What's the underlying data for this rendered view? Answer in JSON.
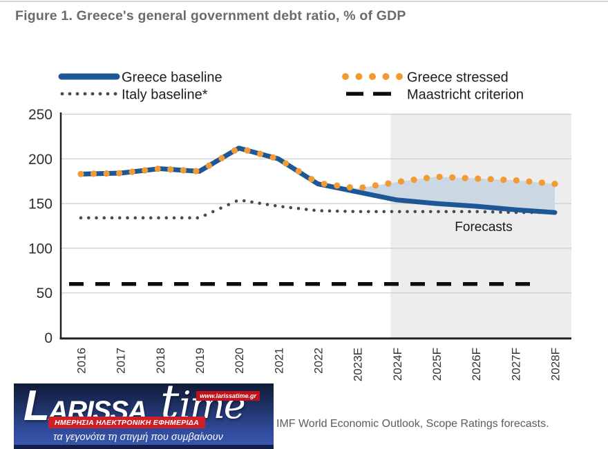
{
  "page": {
    "title": "Figure 1. Greece's general government debt ratio, % of GDP"
  },
  "source_note": "IMF World Economic Outlook, Scope Ratings forecasts.",
  "watermark": {
    "brand_first_letter": "L",
    "brand_rest": "ARISSA",
    "brand_t": "t",
    "brand_ime": "ime",
    "url": "www.larissatime.gr",
    "tagline_red": "ΗΜΕΡΗΣΙΑ ΗΛΕΚΤΡΟΝΙΚΗ ΕΦΗΜΕΡΙΔΑ",
    "tagline_blue": "τα γεγονότα τη στιγμή που συμβαίνουν"
  },
  "chart_data": {
    "type": "line",
    "title": "Figure 1. Greece's general government debt ratio, % of GDP",
    "categories": [
      "2016",
      "2017",
      "2018",
      "2019",
      "2020",
      "2021",
      "2022",
      "2023E",
      "2024F",
      "2025F",
      "2026F",
      "2027F",
      "2028F"
    ],
    "series": [
      {
        "name": "Greece baseline",
        "style": "solid",
        "color": "#1d5796",
        "values": [
          183,
          184,
          189,
          186,
          212,
          200,
          172,
          163,
          154,
          150,
          147,
          143,
          140
        ]
      },
      {
        "name": "Italy baseline*",
        "style": "dotted-small",
        "color": "#4a4a4a",
        "values": [
          134,
          134,
          134,
          134,
          154,
          147,
          142,
          141,
          141,
          141,
          141,
          140,
          140
        ]
      },
      {
        "name": "Greece stressed",
        "style": "dotted-large",
        "color": "#f29a33",
        "values": [
          183,
          184,
          189,
          186,
          212,
          200,
          173,
          167,
          174,
          180,
          178,
          176,
          172
        ]
      },
      {
        "name": "Maastricht criterion",
        "style": "dashed",
        "color": "#0d0d0d",
        "values": [
          60,
          60,
          60,
          60,
          60,
          60,
          60,
          60,
          60,
          60,
          60,
          60,
          60
        ]
      }
    ],
    "xlabel": "",
    "ylabel": "",
    "ylim": [
      0,
      250
    ],
    "y_ticks": [
      0,
      50,
      100,
      150,
      200,
      250
    ],
    "grid": "horizontal",
    "legend_position": "top",
    "fill_between": {
      "upper_series": "Greece stressed",
      "lower_series": "Greece baseline",
      "from_category": "2022",
      "color": "#cbd7e2"
    },
    "forecast_band": {
      "from_category": "2024F",
      "color": "#ededed",
      "label": "Forecasts"
    },
    "annotations": [
      "Forecasts"
    ],
    "tick_label_color": "#333333",
    "gridline_color": "#cbcbcb",
    "axis_color": "#222222"
  }
}
